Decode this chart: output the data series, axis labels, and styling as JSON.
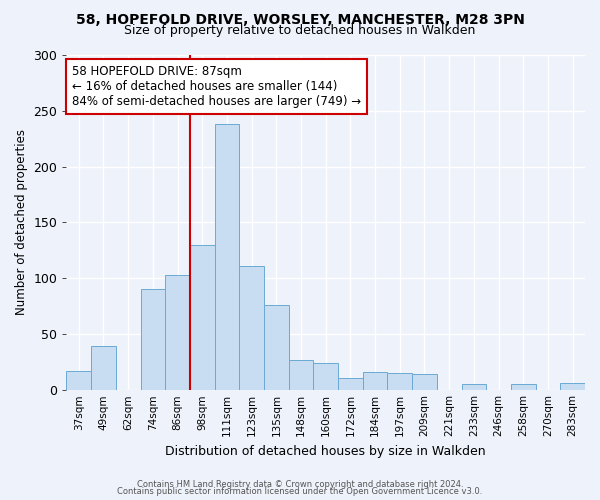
{
  "title": "58, HOPEFOLD DRIVE, WORSLEY, MANCHESTER, M28 3PN",
  "subtitle": "Size of property relative to detached houses in Walkden",
  "xlabel": "Distribution of detached houses by size in Walkden",
  "ylabel": "Number of detached properties",
  "bar_labels": [
    "37sqm",
    "49sqm",
    "62sqm",
    "74sqm",
    "86sqm",
    "98sqm",
    "111sqm",
    "123sqm",
    "135sqm",
    "148sqm",
    "160sqm",
    "172sqm",
    "184sqm",
    "197sqm",
    "209sqm",
    "221sqm",
    "233sqm",
    "246sqm",
    "258sqm",
    "270sqm",
    "283sqm"
  ],
  "bar_heights": [
    17,
    39,
    0,
    90,
    103,
    130,
    238,
    111,
    76,
    27,
    24,
    11,
    16,
    15,
    14,
    0,
    5,
    0,
    5,
    0,
    6
  ],
  "bar_color": "#c9ddf2",
  "bar_edge_color": "#6aaad4",
  "vline_color": "#cc0000",
  "annotation_title": "58 HOPEFOLD DRIVE: 87sqm",
  "annotation_line1": "← 16% of detached houses are smaller (144)",
  "annotation_line2": "84% of semi-detached houses are larger (749) →",
  "annotation_box_color": "white",
  "annotation_box_edge_color": "#cc0000",
  "ylim": [
    0,
    300
  ],
  "yticks": [
    0,
    50,
    100,
    150,
    200,
    250,
    300
  ],
  "footer1": "Contains HM Land Registry data © Crown copyright and database right 2024.",
  "footer2": "Contains public sector information licensed under the Open Government Licence v3.0.",
  "background_color": "#eef2fa",
  "grid_color": "#ffffff",
  "title_fontsize": 10,
  "subtitle_fontsize": 9
}
